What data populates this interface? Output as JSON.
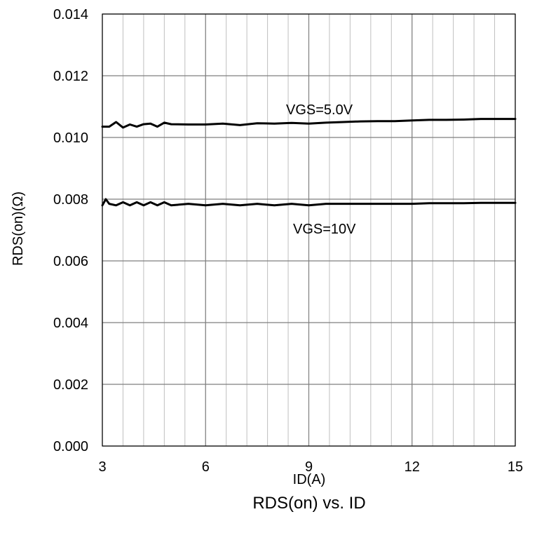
{
  "chart_data": {
    "type": "line",
    "title": "RDS(on) vs. ID",
    "xlabel": "ID(A)",
    "ylabel": "RDS(on)(Ω)",
    "xlim": [
      3,
      15
    ],
    "ylim": [
      0,
      0.014
    ],
    "x_ticks": [
      "3",
      "6",
      "9",
      "12",
      "15"
    ],
    "y_ticks": [
      "0.000",
      "0.002",
      "0.004",
      "0.006",
      "0.008",
      "0.010",
      "0.012",
      "0.014"
    ],
    "grid": true,
    "series": [
      {
        "name": "VGS=5.0V",
        "x": [
          3.0,
          3.2,
          3.4,
          3.6,
          3.8,
          4.0,
          4.2,
          4.4,
          4.6,
          4.8,
          5.0,
          5.5,
          6.0,
          6.5,
          7.0,
          7.5,
          8.0,
          8.5,
          9.0,
          9.5,
          10.0,
          10.5,
          11.0,
          11.5,
          12.0,
          12.5,
          13.0,
          13.5,
          14.0,
          14.5,
          15.0
        ],
        "y": [
          0.01035,
          0.01035,
          0.0105,
          0.01032,
          0.01042,
          0.01035,
          0.01043,
          0.01045,
          0.01035,
          0.01048,
          0.01043,
          0.01042,
          0.01042,
          0.01045,
          0.0104,
          0.01046,
          0.01045,
          0.01047,
          0.01045,
          0.01048,
          0.0105,
          0.01052,
          0.01053,
          0.01053,
          0.01055,
          0.01057,
          0.01057,
          0.01058,
          0.0106,
          0.0106,
          0.0106
        ]
      },
      {
        "name": "VGS=10V",
        "x": [
          3.0,
          3.1,
          3.2,
          3.4,
          3.6,
          3.8,
          4.0,
          4.2,
          4.4,
          4.6,
          4.8,
          5.0,
          5.5,
          6.0,
          6.5,
          7.0,
          7.5,
          8.0,
          8.5,
          9.0,
          9.5,
          10.0,
          10.5,
          11.0,
          11.5,
          12.0,
          12.5,
          13.0,
          13.5,
          14.0,
          14.5,
          15.0
        ],
        "y": [
          0.0078,
          0.008,
          0.00785,
          0.0078,
          0.0079,
          0.0078,
          0.0079,
          0.0078,
          0.0079,
          0.0078,
          0.0079,
          0.0078,
          0.00785,
          0.0078,
          0.00785,
          0.0078,
          0.00785,
          0.0078,
          0.00785,
          0.0078,
          0.00785,
          0.00785,
          0.00785,
          0.00785,
          0.00785,
          0.00785,
          0.00787,
          0.00787,
          0.00787,
          0.00788,
          0.00788,
          0.00788
        ]
      }
    ],
    "annotations": [
      "VGS=5.0V",
      "VGS=10V"
    ]
  },
  "colors": {
    "line": "#000000",
    "grid": "#bfbfbf",
    "frame": "#000000",
    "background": "#ffffff"
  }
}
